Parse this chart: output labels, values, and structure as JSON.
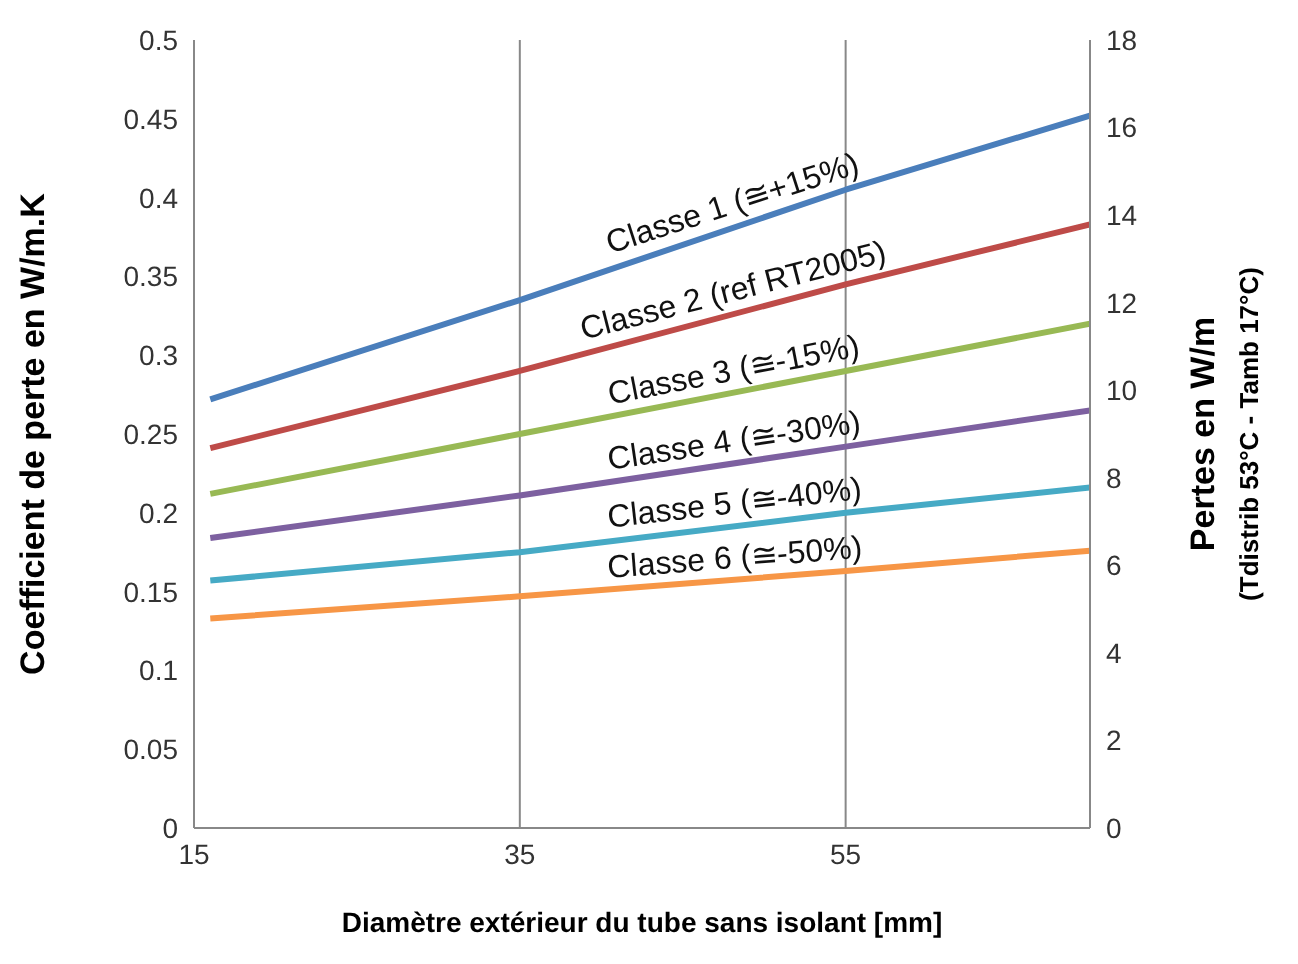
{
  "chart_data": {
    "type": "line",
    "xlabel": "Diamètre extérieur du tube sans isolant [mm]",
    "ylabel": "Coefficient de perte  en W/m.K",
    "y2label": "Pertes en W/m\n(Tdistrib 53°C - Tamb 17°C)",
    "x": [
      16,
      35,
      55,
      70
    ],
    "series": [
      {
        "name": "Classe 1 (≅+15%)",
        "color": "#4a7ebb",
        "values": [
          0.272,
          0.335,
          0.405,
          0.452
        ]
      },
      {
        "name": "Classe 2 (ref RT2005)",
        "color": "#be4b48",
        "values": [
          0.241,
          0.29,
          0.345,
          0.383
        ]
      },
      {
        "name": "Classe 3 (≅-15%)",
        "color": "#98b954",
        "values": [
          0.212,
          0.25,
          0.29,
          0.32
        ]
      },
      {
        "name": "Classe 4 (≅-30%)",
        "color": "#7d60a0",
        "values": [
          0.184,
          0.211,
          0.242,
          0.265
        ]
      },
      {
        "name": "Classe 5 (≅-40%)",
        "color": "#46aac5",
        "values": [
          0.157,
          0.175,
          0.2,
          0.216
        ]
      },
      {
        "name": "Classe 6 (≅-50%)",
        "color": "#f79646",
        "values": [
          0.133,
          0.147,
          0.163,
          0.176
        ]
      }
    ],
    "xlim": [
      15,
      70
    ],
    "xticks": [
      15,
      35,
      55
    ],
    "ylim": [
      0,
      0.5
    ],
    "yticks": [
      0,
      0.05,
      0.1,
      0.15,
      0.2,
      0.25,
      0.3,
      0.35,
      0.4,
      0.45,
      0.5
    ],
    "y2lim": [
      0,
      18
    ],
    "y2ticks": [
      0,
      2,
      4,
      6,
      8,
      10,
      12,
      14,
      16,
      18
    ],
    "grid": "x",
    "marker": "none",
    "line_style": "solid"
  }
}
